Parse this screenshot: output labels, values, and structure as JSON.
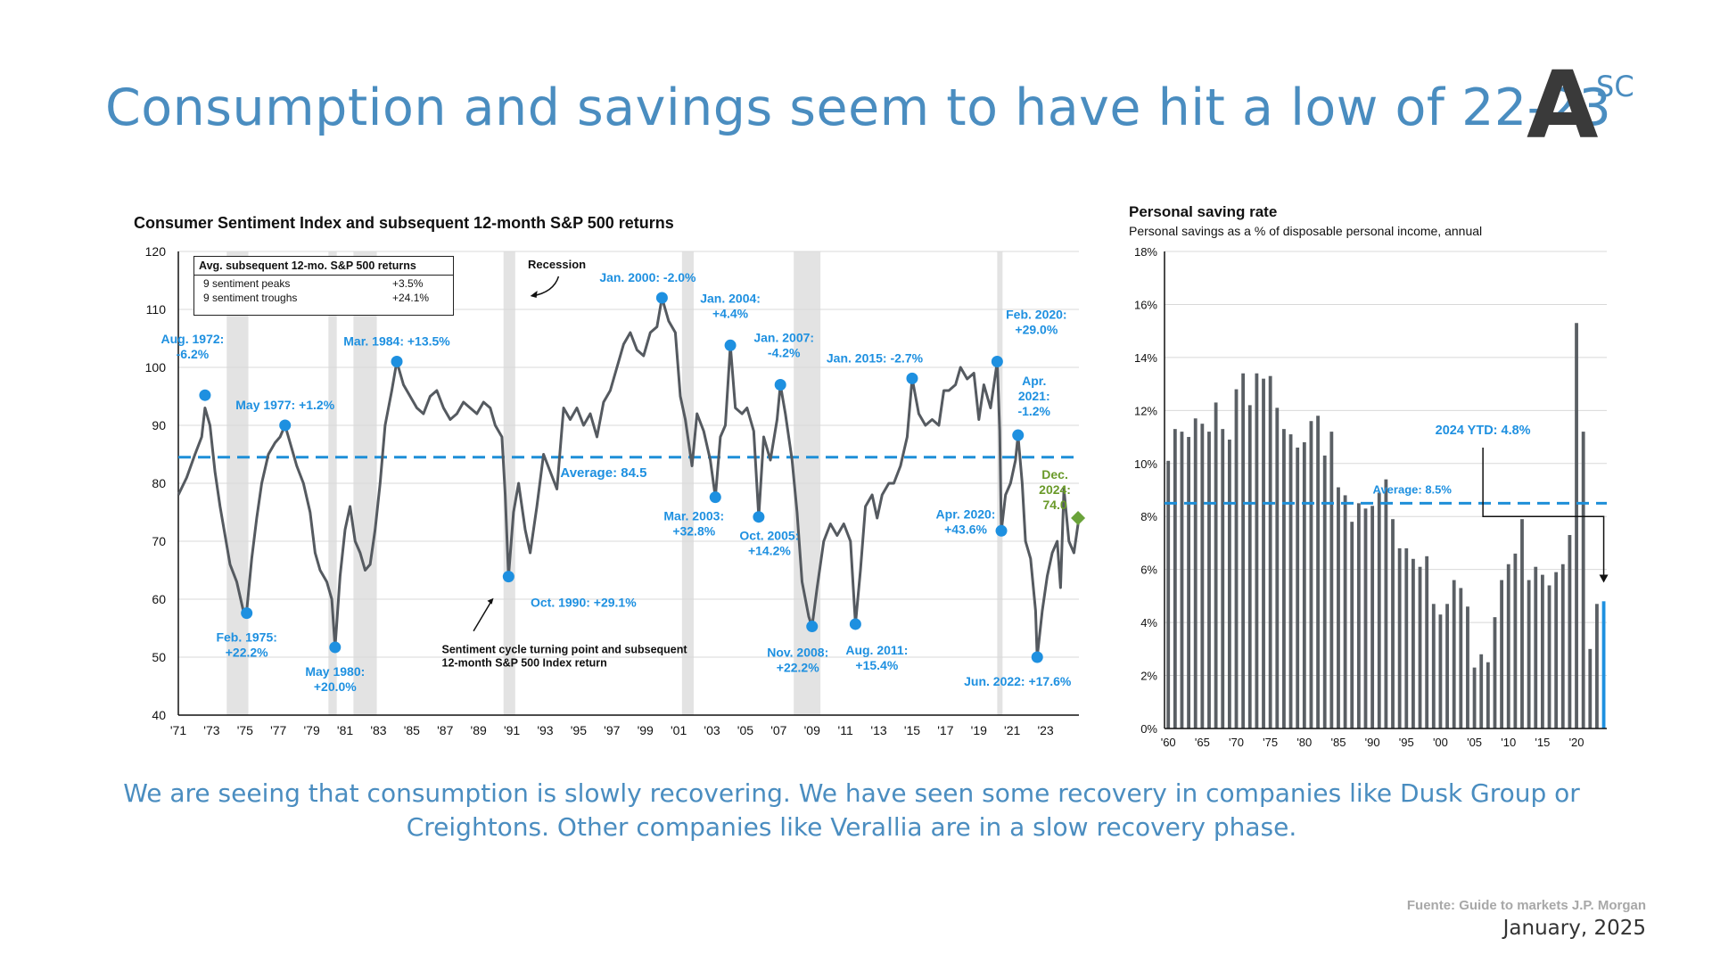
{
  "page": {
    "title": "Consumption and savings seem to have hit a low of 22-23",
    "logo_letter": "A",
    "logo_sup": "SC",
    "caption": "We are seeing that consumption is slowly recovering. We have seen some recovery in companies like Dusk Group or Creightons. Other companies like Verallia are in a slow recovery phase.",
    "source": "Fuente: Guide to markets J.P. Morgan",
    "date": "January, 2025",
    "colors": {
      "accent": "#4a8dc0",
      "line": "#555a60",
      "marker": "#1e90e0",
      "dash": "#1e8fd8",
      "green": "#6a9a2a",
      "recession": "#e3e3e3"
    }
  },
  "avg_box": {
    "header": "Avg. subsequent 12-mo. S&P 500 returns",
    "rows": [
      {
        "label": "9 sentiment peaks",
        "value": "+3.5%"
      },
      {
        "label": "9 sentiment troughs",
        "value": "+24.1%"
      }
    ]
  },
  "chart_data": [
    {
      "type": "line",
      "title": "Consumer Sentiment Index and subsequent 12-month S&P 500 returns",
      "xlabel": "",
      "ylabel": "",
      "xlim": [
        1971,
        2025
      ],
      "ylim": [
        40,
        120
      ],
      "yticks": [
        40,
        50,
        60,
        70,
        80,
        90,
        100,
        110,
        120
      ],
      "xtick_labels": [
        "'71",
        "'73",
        "'75",
        "'77",
        "'79",
        "'81",
        "'83",
        "'85",
        "'87",
        "'89",
        "'91",
        "'93",
        "'95",
        "'97",
        "'99",
        "'01",
        "'03",
        "'05",
        "'07",
        "'09",
        "'11",
        "'13",
        "'15",
        "'17",
        "'19",
        "'21",
        "'23"
      ],
      "grid": true,
      "recessions": [
        [
          1973.9,
          1975.2
        ],
        [
          1980.0,
          1980.5
        ],
        [
          1981.5,
          1982.9
        ],
        [
          1990.5,
          1991.2
        ],
        [
          2001.2,
          2001.9
        ],
        [
          2007.9,
          2009.5
        ],
        [
          2020.1,
          2020.4
        ]
      ],
      "recession_label": "Recession",
      "average": {
        "value": 84.5,
        "label": "Average: 84.5"
      },
      "series": [
        {
          "values": [
            [
              1971.0,
              78
            ],
            [
              1971.5,
              81
            ],
            [
              1972.0,
              85
            ],
            [
              1972.4,
              88
            ],
            [
              1972.6,
              93
            ],
            [
              1972.9,
              90
            ],
            [
              1973.2,
              82
            ],
            [
              1973.5,
              76
            ],
            [
              1973.8,
              71
            ],
            [
              1974.1,
              66
            ],
            [
              1974.5,
              63
            ],
            [
              1974.9,
              58
            ],
            [
              1975.1,
              58
            ],
            [
              1975.4,
              67
            ],
            [
              1975.7,
              74
            ],
            [
              1976.0,
              80
            ],
            [
              1976.4,
              85
            ],
            [
              1976.8,
              87
            ],
            [
              1977.1,
              88
            ],
            [
              1977.4,
              90
            ],
            [
              1977.8,
              86
            ],
            [
              1978.1,
              83
            ],
            [
              1978.5,
              80
            ],
            [
              1978.9,
              75
            ],
            [
              1979.2,
              68
            ],
            [
              1979.5,
              65
            ],
            [
              1979.9,
              63
            ],
            [
              1980.2,
              60
            ],
            [
              1980.4,
              51.7
            ],
            [
              1980.7,
              64
            ],
            [
              1981.0,
              72
            ],
            [
              1981.3,
              76
            ],
            [
              1981.6,
              70
            ],
            [
              1981.9,
              68
            ],
            [
              1982.2,
              65
            ],
            [
              1982.5,
              66
            ],
            [
              1982.8,
              72
            ],
            [
              1983.1,
              80
            ],
            [
              1983.4,
              90
            ],
            [
              1983.8,
              96
            ],
            [
              1984.1,
              101
            ],
            [
              1984.5,
              97
            ],
            [
              1984.9,
              95
            ],
            [
              1985.3,
              93
            ],
            [
              1985.7,
              92
            ],
            [
              1986.1,
              95
            ],
            [
              1986.5,
              96
            ],
            [
              1986.9,
              93
            ],
            [
              1987.3,
              91
            ],
            [
              1987.7,
              92
            ],
            [
              1988.1,
              94
            ],
            [
              1988.5,
              93
            ],
            [
              1988.9,
              92
            ],
            [
              1989.3,
              94
            ],
            [
              1989.7,
              93
            ],
            [
              1990.0,
              90
            ],
            [
              1990.4,
              88
            ],
            [
              1990.6,
              78
            ],
            [
              1990.8,
              63.9
            ],
            [
              1991.1,
              75
            ],
            [
              1991.4,
              80
            ],
            [
              1991.8,
              72
            ],
            [
              1992.1,
              68
            ],
            [
              1992.5,
              76
            ],
            [
              1992.9,
              85
            ],
            [
              1993.3,
              82
            ],
            [
              1993.7,
              79
            ],
            [
              1994.1,
              93
            ],
            [
              1994.5,
              91
            ],
            [
              1994.9,
              93
            ],
            [
              1995.3,
              90
            ],
            [
              1995.7,
              92
            ],
            [
              1996.1,
              88
            ],
            [
              1996.5,
              94
            ],
            [
              1996.9,
              96
            ],
            [
              1997.3,
              100
            ],
            [
              1997.7,
              104
            ],
            [
              1998.1,
              106
            ],
            [
              1998.5,
              103
            ],
            [
              1998.9,
              102
            ],
            [
              1999.3,
              106
            ],
            [
              1999.7,
              107
            ],
            [
              2000.0,
              112
            ],
            [
              2000.4,
              108
            ],
            [
              2000.8,
              106
            ],
            [
              2001.1,
              95
            ],
            [
              2001.4,
              91
            ],
            [
              2001.8,
              83
            ],
            [
              2002.1,
              92
            ],
            [
              2002.5,
              89
            ],
            [
              2002.9,
              84
            ],
            [
              2003.2,
              77.6
            ],
            [
              2003.5,
              88
            ],
            [
              2003.8,
              90
            ],
            [
              2004.1,
              103.8
            ],
            [
              2004.4,
              93
            ],
            [
              2004.8,
              92
            ],
            [
              2005.1,
              93
            ],
            [
              2005.5,
              89
            ],
            [
              2005.8,
              74.2
            ],
            [
              2006.1,
              88
            ],
            [
              2006.5,
              84
            ],
            [
              2006.9,
              91
            ],
            [
              2007.1,
              97
            ],
            [
              2007.4,
              92
            ],
            [
              2007.8,
              84
            ],
            [
              2008.1,
              75
            ],
            [
              2008.4,
              63
            ],
            [
              2008.8,
              57
            ],
            [
              2009.0,
              55.3
            ],
            [
              2009.3,
              62
            ],
            [
              2009.7,
              70
            ],
            [
              2010.1,
              73
            ],
            [
              2010.5,
              71
            ],
            [
              2010.9,
              73
            ],
            [
              2011.3,
              70
            ],
            [
              2011.6,
              55.7
            ],
            [
              2011.9,
              65
            ],
            [
              2012.2,
              76
            ],
            [
              2012.6,
              78
            ],
            [
              2012.9,
              74
            ],
            [
              2013.2,
              78
            ],
            [
              2013.6,
              80
            ],
            [
              2013.9,
              80
            ],
            [
              2014.3,
              83
            ],
            [
              2014.7,
              88
            ],
            [
              2015.0,
              98.1
            ],
            [
              2015.4,
              92
            ],
            [
              2015.8,
              90
            ],
            [
              2016.2,
              91
            ],
            [
              2016.6,
              90
            ],
            [
              2016.9,
              96
            ],
            [
              2017.2,
              96
            ],
            [
              2017.6,
              97
            ],
            [
              2017.9,
              100
            ],
            [
              2018.3,
              98
            ],
            [
              2018.7,
              99
            ],
            [
              2019.0,
              91
            ],
            [
              2019.3,
              97
            ],
            [
              2019.7,
              93
            ],
            [
              2020.1,
              101
            ],
            [
              2020.25,
              89
            ],
            [
              2020.35,
              71.8
            ],
            [
              2020.6,
              78
            ],
            [
              2020.9,
              80
            ],
            [
              2021.2,
              84
            ],
            [
              2021.35,
              88.3
            ],
            [
              2021.6,
              80
            ],
            [
              2021.8,
              70
            ],
            [
              2022.1,
              67
            ],
            [
              2022.4,
              58
            ],
            [
              2022.5,
              50.0
            ],
            [
              2022.8,
              58
            ],
            [
              2023.1,
              64
            ],
            [
              2023.4,
              68
            ],
            [
              2023.7,
              70
            ],
            [
              2023.9,
              62
            ],
            [
              2024.1,
              79
            ],
            [
              2024.4,
              70
            ],
            [
              2024.7,
              68
            ],
            [
              2025.0,
              74
            ]
          ]
        }
      ],
      "annotations": [
        {
          "x": 1972.6,
          "y": 95.2,
          "text": "Aug. 1972:\n-6.2%"
        },
        {
          "x": 1975.1,
          "y": 57.6,
          "text": "Feb. 1975:\n+22.2%"
        },
        {
          "x": 1977.4,
          "y": 90.0,
          "text": "May 1977: +1.2%"
        },
        {
          "x": 1980.4,
          "y": 51.7,
          "text": "May 1980:\n+20.0%"
        },
        {
          "x": 1984.1,
          "y": 101.0,
          "text": "Mar. 1984: +13.5%"
        },
        {
          "x": 1990.8,
          "y": 63.9,
          "text": "Oct. 1990: +29.1%"
        },
        {
          "x": 2000.0,
          "y": 112.0,
          "text": "Jan. 2000: -2.0%"
        },
        {
          "x": 2003.2,
          "y": 77.6,
          "text": "Mar. 2003:\n+32.8%"
        },
        {
          "x": 2004.1,
          "y": 103.8,
          "text": "Jan. 2004:\n+4.4%"
        },
        {
          "x": 2005.8,
          "y": 74.2,
          "text": "Oct. 2005:\n+14.2%"
        },
        {
          "x": 2007.1,
          "y": 97.0,
          "text": "Jan. 2007:\n-4.2%"
        },
        {
          "x": 2009.0,
          "y": 55.3,
          "text": "Nov. 2008:\n+22.2%"
        },
        {
          "x": 2011.6,
          "y": 55.7,
          "text": "Aug. 2011:\n+15.4%"
        },
        {
          "x": 2015.0,
          "y": 98.1,
          "text": "Jan. 2015: -2.7%"
        },
        {
          "x": 2020.1,
          "y": 101.0,
          "text": "Feb. 2020:\n+29.0%"
        },
        {
          "x": 2020.35,
          "y": 71.8,
          "text": "Apr. 2020:\n+43.6%"
        },
        {
          "x": 2021.35,
          "y": 88.3,
          "text": "Apr.\n2021:\n-1.2%"
        },
        {
          "x": 2022.5,
          "y": 50.0,
          "text": "Jun. 2022: +17.6%"
        }
      ],
      "latest": {
        "x": 2024.95,
        "y": 74.0,
        "text": "Dec.\n2024:\n74.0"
      },
      "note": "Sentiment cycle turning point and subsequent\n12-month S&P 500 Index return"
    },
    {
      "type": "bar",
      "title": "Personal saving rate",
      "subtitle": "Personal savings as a % of disposable personal income, annual",
      "xlabel": "",
      "ylabel": "",
      "ylim": [
        0,
        18
      ],
      "yticks": [
        "0%",
        "2%",
        "4%",
        "6%",
        "8%",
        "10%",
        "12%",
        "14%",
        "16%",
        "18%"
      ],
      "xtick_labels": [
        "'60",
        "'65",
        "'70",
        "'75",
        "'80",
        "'85",
        "'90",
        "'95",
        "'00",
        "'05",
        "'10",
        "'15",
        "'20"
      ],
      "categories": [
        1960,
        1961,
        1962,
        1963,
        1964,
        1965,
        1966,
        1967,
        1968,
        1969,
        1970,
        1971,
        1972,
        1973,
        1974,
        1975,
        1976,
        1977,
        1978,
        1979,
        1980,
        1981,
        1982,
        1983,
        1984,
        1985,
        1986,
        1987,
        1988,
        1989,
        1990,
        1991,
        1992,
        1993,
        1994,
        1995,
        1996,
        1997,
        1998,
        1999,
        2000,
        2001,
        2002,
        2003,
        2004,
        2005,
        2006,
        2007,
        2008,
        2009,
        2010,
        2011,
        2012,
        2013,
        2014,
        2015,
        2016,
        2017,
        2018,
        2019,
        2020,
        2021,
        2022,
        2023,
        2024
      ],
      "values": [
        10.1,
        11.3,
        11.2,
        11.0,
        11.7,
        11.5,
        11.2,
        12.3,
        11.3,
        10.9,
        12.8,
        13.4,
        12.2,
        13.4,
        13.2,
        13.3,
        12.1,
        11.3,
        11.1,
        10.6,
        10.8,
        11.6,
        11.8,
        10.3,
        11.2,
        9.1,
        8.8,
        7.8,
        8.5,
        8.3,
        8.4,
        8.9,
        9.4,
        7.9,
        6.8,
        6.8,
        6.4,
        6.1,
        6.5,
        4.7,
        4.3,
        4.7,
        5.6,
        5.3,
        4.6,
        2.3,
        2.8,
        2.5,
        4.2,
        5.6,
        6.2,
        6.6,
        7.9,
        5.6,
        6.1,
        5.8,
        5.4,
        5.9,
        6.2,
        7.3,
        15.3,
        11.2,
        3.0,
        4.7,
        4.8
      ],
      "average": {
        "value": 8.5,
        "label": "Average: 8.5%"
      },
      "highlight": {
        "index": 64,
        "label": "2024 YTD: 4.8%"
      },
      "grid": true
    }
  ]
}
